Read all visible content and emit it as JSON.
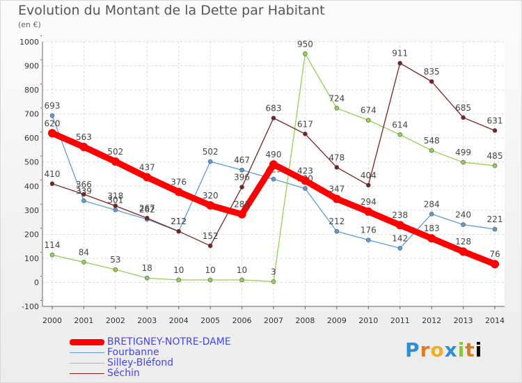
{
  "chart_data": {
    "type": "line",
    "title": "Evolution du Montant de la Dette par Habitant",
    "subtitle": "(en €)",
    "x": [
      "2000",
      "2001",
      "2002",
      "2003",
      "2004",
      "2005",
      "2006",
      "2007",
      "2008",
      "2009",
      "2010",
      "2011",
      "2012",
      "2013",
      "2014"
    ],
    "ylim": [
      -100,
      1000
    ],
    "yticks": [
      "-100",
      "0",
      "100",
      "200",
      "300",
      "400",
      "500",
      "600",
      "700",
      "800",
      "900",
      "1000"
    ],
    "grid": true,
    "legend": "bottom-left",
    "series": [
      {
        "name": "BRETIGNEY-NOTRE-DAME",
        "color": "#ff0000",
        "values": [
          620,
          563,
          502,
          437,
          376,
          320,
          283,
          490,
          423,
          347,
          294,
          238,
          183,
          128,
          76
        ]
      },
      {
        "name": "Fourbanne",
        "color": "#5b9bd5",
        "values": [
          693,
          339,
          301,
          262,
          212,
          502,
          467,
          429,
          390,
          212,
          176,
          142,
          284,
          240,
          221
        ]
      },
      {
        "name": "Silley-Bléfond",
        "color": "#92d050",
        "values": [
          114,
          84,
          53,
          18,
          10,
          10,
          10,
          3,
          950,
          724,
          674,
          614,
          548,
          499,
          485
        ]
      },
      {
        "name": "Séchin",
        "color": "#7b2020",
        "values": [
          410,
          366,
          318,
          267,
          212,
          152,
          396,
          683,
          617,
          478,
          404,
          911,
          835,
          685,
          631
        ]
      }
    ]
  },
  "brand": {
    "letters": [
      "P",
      "r",
      "o",
      "x",
      "i",
      "t",
      "i"
    ]
  }
}
